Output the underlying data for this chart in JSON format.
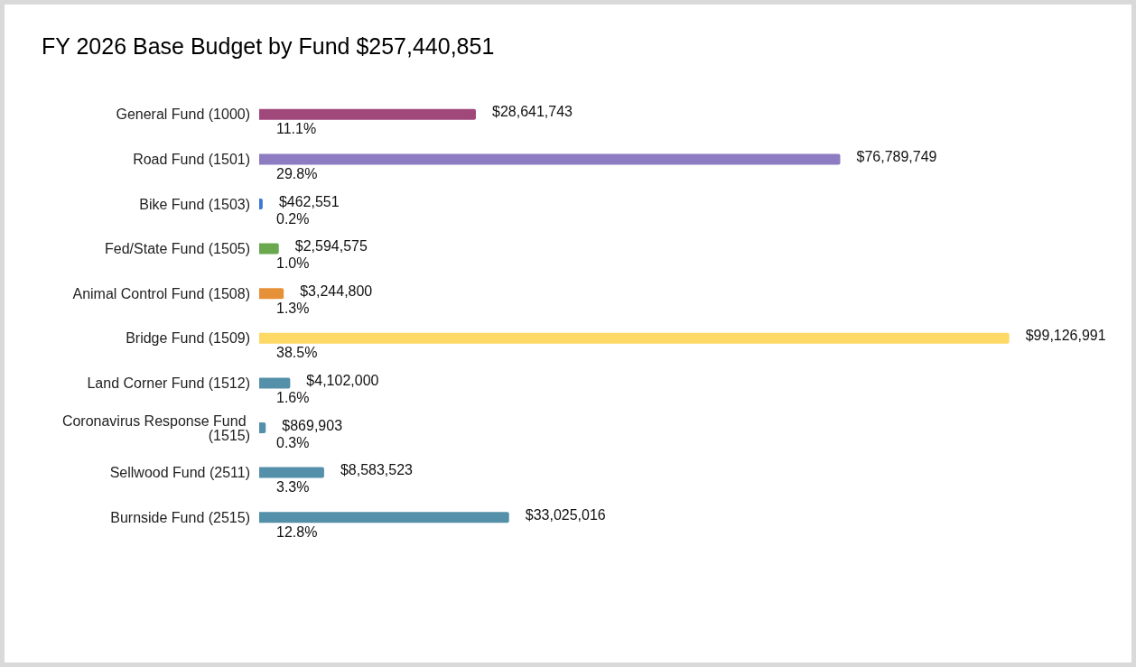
{
  "chart_data": {
    "type": "bar",
    "orientation": "horizontal",
    "title": "FY 2026 Base Budget by Fund $257,440,851",
    "categories": [
      "General Fund (1000)",
      "Road Fund (1501)",
      "Bike Fund (1503)",
      "Fed/State Fund (1505)",
      "Animal Control Fund (1508)",
      "Bridge Fund (1509)",
      "Land Corner Fund (1512)",
      "Coronavirus Response Fund (1515)",
      "Sellwood Fund (2511)",
      "Burnside Fund (2515)"
    ],
    "values": [
      28641743,
      76789749,
      462551,
      2594575,
      3244800,
      99126991,
      4102000,
      869903,
      8583523,
      33025016
    ],
    "colors": [
      "#a0487a",
      "#8e7cc3",
      "#3c78d8",
      "#6aa84f",
      "#e69138",
      "#ffd966",
      "#5590aa",
      "#5590aa",
      "#5590aa",
      "#5590aa"
    ],
    "value_labels": [
      "$28,641,743",
      "$76,789,749",
      "$462,551",
      "$2,594,575",
      "$3,244,800",
      "$99,126,991",
      "$4,102,000",
      "$869,903",
      "$8,583,523",
      "$33,025,016"
    ],
    "annotations": [
      "11.1%",
      "29.8%",
      "0.2%",
      "1.0%",
      "1.3%",
      "38.5%",
      "1.6%",
      "0.3%",
      "3.3%",
      "12.8%"
    ]
  }
}
